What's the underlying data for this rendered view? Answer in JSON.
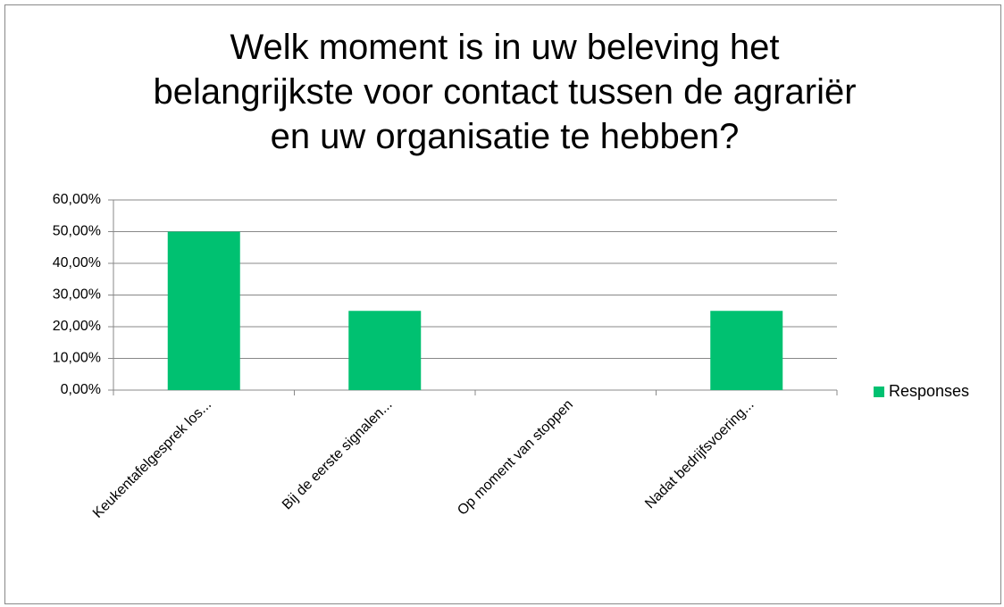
{
  "chart_data": {
    "type": "bar",
    "title": "Welk moment is in uw beleving het belangrijkste voor contact tussen de agrariër en uw organisatie te hebben?",
    "categories": [
      "Keukentafelgesprek los...",
      "Bij de eerste signalen...",
      "Op moment van stoppen",
      "Nadat bedrijfsvoering..."
    ],
    "series": [
      {
        "name": "Responses",
        "color": "#00c171",
        "values": [
          50,
          25,
          0,
          25
        ]
      }
    ],
    "ylim": [
      0,
      60
    ],
    "yticks": [
      {
        "value": 0,
        "label": "0,00%"
      },
      {
        "value": 10,
        "label": "10,00%"
      },
      {
        "value": 20,
        "label": "20,00%"
      },
      {
        "value": 30,
        "label": "30,00%"
      },
      {
        "value": 40,
        "label": "40,00%"
      },
      {
        "value": 50,
        "label": "50,00%"
      },
      {
        "value": 60,
        "label": "60,00%"
      }
    ],
    "grid": true,
    "legend": "right"
  }
}
